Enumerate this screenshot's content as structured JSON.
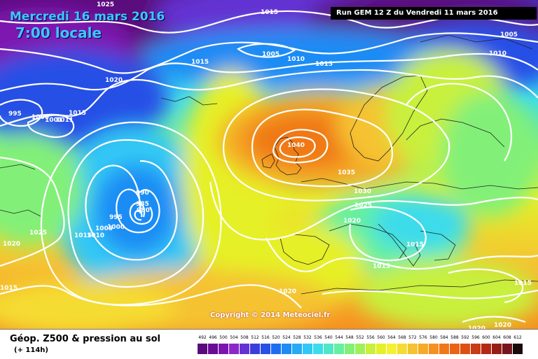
{
  "header": {
    "date": "Mercredi 16 mars 2016",
    "time": "7:00 locale",
    "run": "Run GEM 12 Z du Vendredi 11 mars 2016"
  },
  "copyright": "Copyright © 2014 Meteociel.fr",
  "footer": {
    "title": "Géop. Z500 & pression au sol",
    "subtitle": "(+ 114h)"
  },
  "legend": {
    "labels": [
      "492",
      "496",
      "500",
      "504",
      "508",
      "512",
      "516",
      "520",
      "524",
      "528",
      "532",
      "536",
      "540",
      "544",
      "548",
      "552",
      "556",
      "560",
      "564",
      "568",
      "572",
      "576",
      "580",
      "584",
      "588",
      "592",
      "596",
      "600",
      "604",
      "608",
      "612"
    ],
    "colors": [
      "#5a0a7a",
      "#6a0a95",
      "#7e14b0",
      "#8c28c8",
      "#6432d2",
      "#3c3cdc",
      "#2850e6",
      "#1e6ef0",
      "#1e8cf5",
      "#28aaf5",
      "#32c8f5",
      "#3cdceb",
      "#50e6c8",
      "#64f0a0",
      "#82f078",
      "#a0f05a",
      "#c8f03c",
      "#e6f028",
      "#f5f032",
      "#f5dc32",
      "#f5c332",
      "#f5aa28",
      "#f59120",
      "#f07818",
      "#eb6414",
      "#dc5014",
      "#c83c14",
      "#b42814",
      "#961e14",
      "#78141e",
      "#1a0a0a"
    ]
  },
  "pressure_labels": [
    "1025",
    "1015",
    "1005",
    "1005",
    "1010",
    "1015",
    "1020",
    "1015",
    "1010",
    "995",
    "1000",
    "1001",
    "1011",
    "1015",
    "1040",
    "1035",
    "1030",
    "1025",
    "1020",
    "990",
    "985",
    "980",
    "995",
    "1000",
    "1005",
    "1015",
    "1010",
    "1025",
    "1020",
    "1015",
    "1015",
    "1015",
    "1015",
    "1020",
    "1020",
    "1020"
  ]
}
